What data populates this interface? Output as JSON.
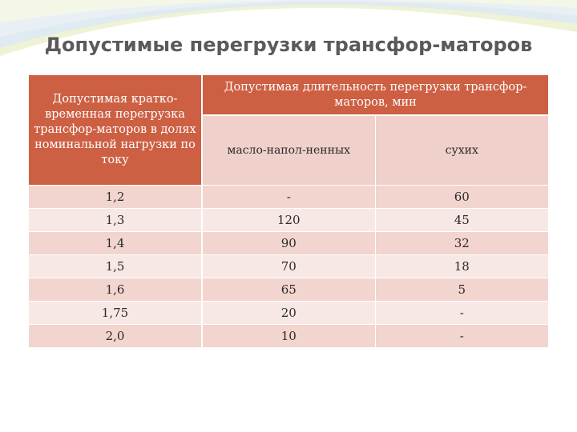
{
  "title": "Допустимые перегрузки трансфор-маторов",
  "table": {
    "header_col1": "Допустимая кратко-временная перегрузка трансфор-маторов в долях номинальной нагрузки по току",
    "header_col2": "Допустимая длительность перегрузки трансфор-маторов, мин",
    "subheaders": [
      "масло-напол-ненных",
      "сухих"
    ],
    "rows": [
      {
        "load": "1,2",
        "oil": "-",
        "dry": "60"
      },
      {
        "load": "1,3",
        "oil": "120",
        "dry": "45"
      },
      {
        "load": "1,4",
        "oil": "90",
        "dry": "32"
      },
      {
        "load": "1,5",
        "oil": "70",
        "dry": "18"
      },
      {
        "load": "1,6",
        "oil": "65",
        "dry": "5"
      },
      {
        "load": "1,75",
        "oil": "20",
        "dry": "-"
      },
      {
        "load": "2,0",
        "oil": "10",
        "dry": "-"
      }
    ]
  },
  "colors": {
    "header_bg": "#cd5f43",
    "row_dark": "#f2d5cf",
    "row_light": "#f8e8e5",
    "title": "#5a5a5a"
  }
}
